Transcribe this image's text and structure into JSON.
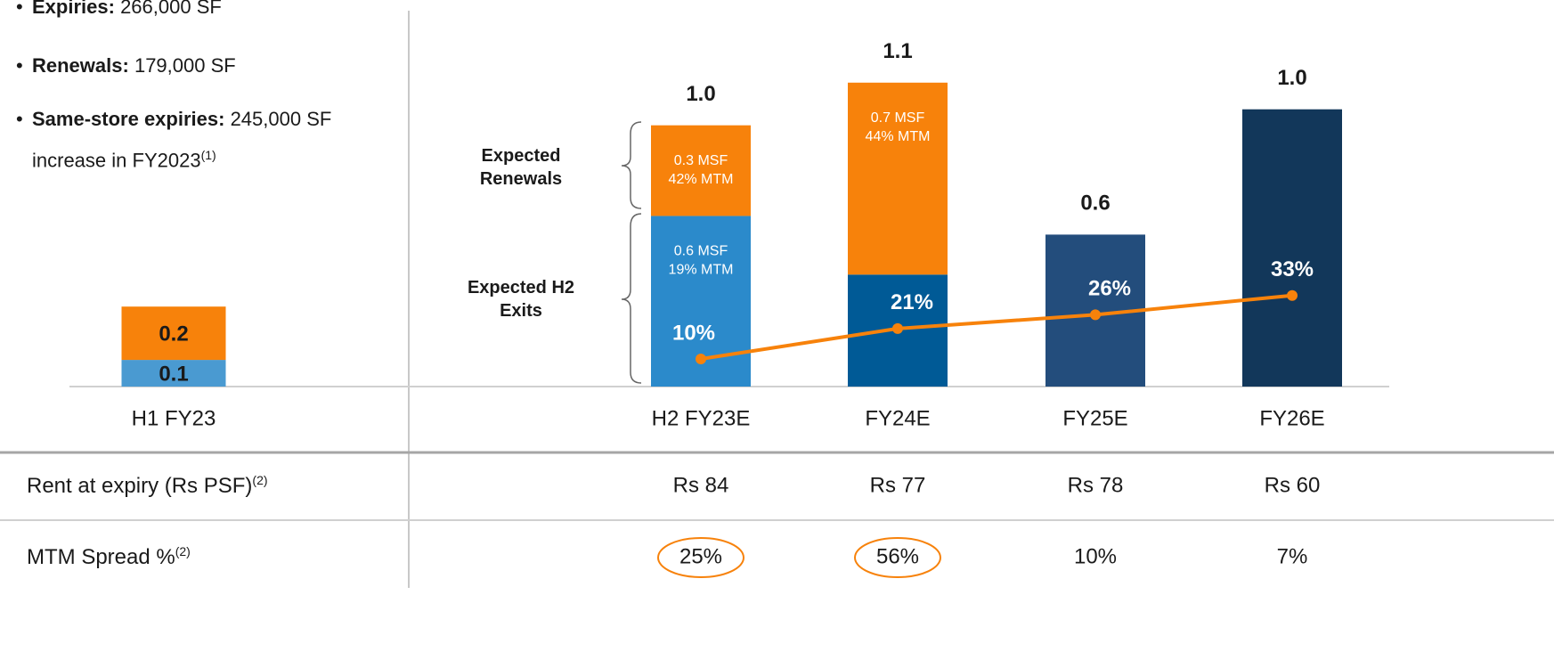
{
  "bullets": [
    {
      "bold": "Expiries:",
      "text": "266,000 SF"
    },
    {
      "bold": "Renewals:",
      "text": "179,000 SF"
    },
    {
      "bold": "Same-store expiries:",
      "text": "245,000 SF increase in FY2023",
      "note": "(1)"
    }
  ],
  "chart_data": {
    "type": "stacked_bar",
    "categories": [
      "H1 FY23",
      "H2 FY23E",
      "FY24E",
      "FY25E",
      "FY26E"
    ],
    "ylim": [
      0,
      1.45
    ],
    "y2lim": [
      0,
      140
    ],
    "series": [
      {
        "name": "Expected H2 Exits",
        "colors": [
          "#4a9ad1",
          "#2b8acb",
          "#005a96",
          "#234d7c",
          "#12375a"
        ],
        "values": [
          0.1,
          0.64,
          0.42,
          0.57,
          1.04
        ],
        "value_labels": [
          "0.1",
          "0.6 MSF",
          null,
          null,
          null
        ],
        "mtm_labels": [
          null,
          "19% MTM",
          null,
          null,
          null
        ]
      },
      {
        "name": "Expected Renewals",
        "color": "#f7820b",
        "values": [
          0.2,
          0.34,
          0.72,
          null,
          null
        ],
        "value_labels": [
          "0.2",
          "0.3 MSF",
          "0.7 MSF",
          null,
          null
        ],
        "mtm_labels": [
          null,
          "42% MTM",
          "44% MTM",
          null,
          null
        ]
      },
      {
        "type": "line",
        "axis": "y2",
        "color": "#f7820b",
        "values": [
          null,
          10,
          21,
          26,
          33
        ],
        "value_labels": [
          null,
          "10%",
          "21%",
          "26%",
          "33%"
        ]
      }
    ],
    "total_labels": [
      null,
      "1.0",
      "1.1",
      "0.6",
      "1.0"
    ]
  },
  "table": {
    "rows": [
      {
        "label": "Rent at expiry (Rs PSF)",
        "note": "(2)",
        "cells": [
          "Rs 84",
          "Rs 77",
          "Rs 78",
          "Rs 60"
        ],
        "circled": [
          false,
          false,
          false,
          false
        ]
      },
      {
        "label": "MTM Spread %",
        "note": "(2)",
        "cells": [
          "25%",
          "56%",
          "10%",
          "7%"
        ],
        "circled": [
          true,
          true,
          false,
          false
        ]
      }
    ]
  }
}
